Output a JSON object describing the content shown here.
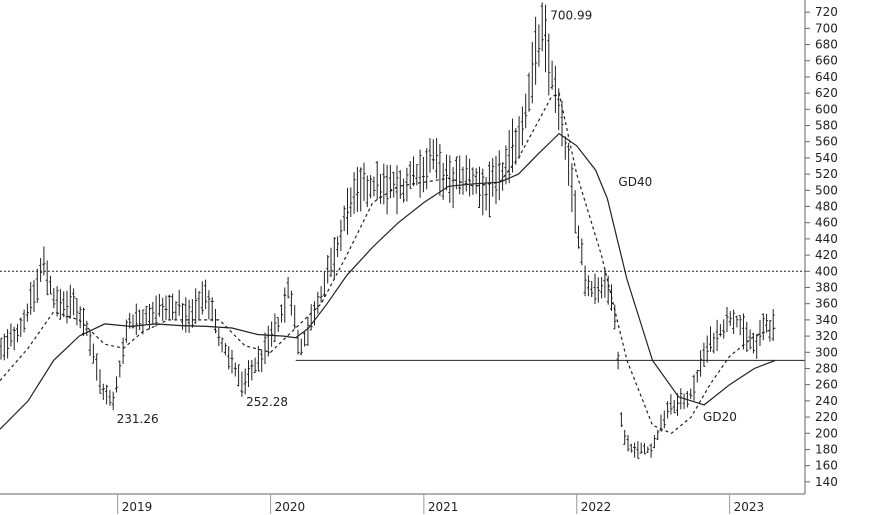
{
  "chart_data": {
    "type": "line",
    "subtype": "ohlc-bar",
    "y_axis_position": "right",
    "ylim": [
      125,
      735
    ],
    "y_ticks": [
      140,
      160,
      180,
      200,
      220,
      240,
      260,
      280,
      300,
      320,
      340,
      360,
      380,
      400,
      420,
      440,
      460,
      480,
      500,
      520,
      540,
      560,
      580,
      600,
      620,
      640,
      660,
      680,
      700,
      720
    ],
    "xlim": [
      "2018-03-26",
      "2023-06-30"
    ],
    "x_ticks": [
      {
        "date": "2019-01-01",
        "label": "2019"
      },
      {
        "date": "2020-01-01",
        "label": "2020"
      },
      {
        "date": "2021-01-01",
        "label": "2021"
      },
      {
        "date": "2022-01-01",
        "label": "2022"
      },
      {
        "date": "2023-01-01",
        "label": "2023"
      }
    ],
    "price_path": [
      [
        "2018-03-26",
        300
      ],
      [
        "2018-05-20",
        335
      ],
      [
        "2018-07-10",
        410
      ],
      [
        "2018-08-05",
        360
      ],
      [
        "2018-09-20",
        360
      ],
      [
        "2018-10-20",
        330
      ],
      [
        "2018-11-25",
        255
      ],
      [
        "2018-12-20",
        235
      ],
      [
        "2019-01-25",
        335
      ],
      [
        "2019-03-25",
        350
      ],
      [
        "2019-05-20",
        355
      ],
      [
        "2019-06-25",
        345
      ],
      [
        "2019-07-30",
        378
      ],
      [
        "2019-08-30",
        320
      ],
      [
        "2019-10-25",
        260
      ],
      [
        "2019-12-10",
        295
      ],
      [
        "2020-01-25",
        340
      ],
      [
        "2020-02-15",
        385
      ],
      [
        "2020-03-10",
        300
      ],
      [
        "2020-04-20",
        360
      ],
      [
        "2020-06-05",
        420
      ],
      [
        "2020-07-10",
        490
      ],
      [
        "2020-08-10",
        500
      ],
      [
        "2020-09-25",
        505
      ],
      [
        "2020-11-05",
        500
      ],
      [
        "2020-12-15",
        520
      ],
      [
        "2021-01-20",
        540
      ],
      [
        "2021-03-01",
        510
      ],
      [
        "2021-04-15",
        515
      ],
      [
        "2021-06-05",
        500
      ],
      [
        "2021-07-10",
        520
      ],
      [
        "2021-08-25",
        585
      ],
      [
        "2021-09-25",
        670
      ],
      [
        "2021-10-15",
        695
      ],
      [
        "2021-11-10",
        620
      ],
      [
        "2021-12-15",
        520
      ],
      [
        "2022-01-25",
        380
      ],
      [
        "2022-02-25",
        380
      ],
      [
        "2022-03-30",
        375
      ],
      [
        "2022-04-20",
        200
      ],
      [
        "2022-05-15",
        180
      ],
      [
        "2022-06-30",
        180
      ],
      [
        "2022-08-05",
        230
      ],
      [
        "2022-09-10",
        240
      ],
      [
        "2022-10-05",
        250
      ],
      [
        "2022-11-01",
        300
      ],
      [
        "2022-12-05",
        325
      ],
      [
        "2023-01-10",
        345
      ],
      [
        "2023-02-10",
        320
      ],
      [
        "2023-03-05",
        305
      ],
      [
        "2023-03-25",
        335
      ],
      [
        "2023-04-20",
        330
      ]
    ],
    "series": [
      {
        "name": "GD20",
        "style": "dashed",
        "color": "#222222",
        "points": [
          [
            "2018-03-26",
            265
          ],
          [
            "2018-06-01",
            305
          ],
          [
            "2018-08-01",
            350
          ],
          [
            "2018-10-01",
            340
          ],
          [
            "2018-12-01",
            310
          ],
          [
            "2019-01-15",
            305
          ],
          [
            "2019-03-01",
            325
          ],
          [
            "2019-05-01",
            340
          ],
          [
            "2019-07-01",
            340
          ],
          [
            "2019-09-01",
            340
          ],
          [
            "2019-11-01",
            308
          ],
          [
            "2020-01-01",
            300
          ],
          [
            "2020-03-01",
            330
          ],
          [
            "2020-05-01",
            360
          ],
          [
            "2020-07-01",
            420
          ],
          [
            "2020-09-01",
            485
          ],
          [
            "2020-11-01",
            505
          ],
          [
            "2021-01-01",
            510
          ],
          [
            "2021-03-01",
            515
          ],
          [
            "2021-05-01",
            505
          ],
          [
            "2021-07-01",
            510
          ],
          [
            "2021-08-15",
            540
          ],
          [
            "2021-10-01",
            585
          ],
          [
            "2021-11-01",
            615
          ],
          [
            "2021-11-20",
            620
          ],
          [
            "2022-01-01",
            520
          ],
          [
            "2022-03-01",
            420
          ],
          [
            "2022-05-01",
            290
          ],
          [
            "2022-07-01",
            210
          ],
          [
            "2022-08-15",
            200
          ],
          [
            "2022-10-01",
            220
          ],
          [
            "2022-11-15",
            260
          ],
          [
            "2023-01-01",
            295
          ],
          [
            "2023-03-01",
            320
          ],
          [
            "2023-04-20",
            330
          ]
        ]
      },
      {
        "name": "GD40",
        "style": "solid",
        "color": "#222222",
        "points": [
          [
            "2018-03-26",
            205
          ],
          [
            "2018-06-01",
            240
          ],
          [
            "2018-08-01",
            290
          ],
          [
            "2018-10-01",
            320
          ],
          [
            "2018-12-01",
            335
          ],
          [
            "2019-02-01",
            332
          ],
          [
            "2019-04-01",
            335
          ],
          [
            "2019-06-01",
            333
          ],
          [
            "2019-08-01",
            332
          ],
          [
            "2019-10-01",
            330
          ],
          [
            "2019-12-01",
            322
          ],
          [
            "2020-02-01",
            320
          ],
          [
            "2020-03-01",
            318
          ],
          [
            "2020-04-01",
            330
          ],
          [
            "2020-05-15",
            360
          ],
          [
            "2020-07-01",
            395
          ],
          [
            "2020-09-01",
            430
          ],
          [
            "2020-11-01",
            460
          ],
          [
            "2021-01-01",
            485
          ],
          [
            "2021-03-01",
            505
          ],
          [
            "2021-05-01",
            508
          ],
          [
            "2021-07-01",
            510
          ],
          [
            "2021-08-15",
            520
          ],
          [
            "2021-10-01",
            545
          ],
          [
            "2021-11-20",
            570
          ],
          [
            "2022-01-01",
            555
          ],
          [
            "2022-02-15",
            525
          ],
          [
            "2022-03-15",
            490
          ],
          [
            "2022-05-01",
            390
          ],
          [
            "2022-07-01",
            290
          ],
          [
            "2022-09-01",
            245
          ],
          [
            "2022-11-01",
            235
          ],
          [
            "2023-01-01",
            260
          ],
          [
            "2023-03-01",
            280
          ],
          [
            "2023-04-20",
            290
          ]
        ]
      }
    ],
    "reference_lines": [
      {
        "style": "dotted",
        "y": 400,
        "x_from": "2018-03-26",
        "x_to": "2023-06-30"
      },
      {
        "style": "solid",
        "y": 290,
        "x_from": "2020-03-01",
        "x_to": "2023-06-30"
      }
    ],
    "annotations": [
      {
        "text": "700.99",
        "x": "2021-10-25",
        "y": 701,
        "anchor": "above-right"
      },
      {
        "text": "231.26",
        "x": "2018-12-20",
        "y": 231,
        "anchor": "below-right"
      },
      {
        "text": "252.28",
        "x": "2019-10-25",
        "y": 252,
        "anchor": "below-right"
      },
      {
        "text": "GD40",
        "x": "2022-04-01",
        "y": 510,
        "anchor": "right"
      },
      {
        "text": "GD20",
        "x": "2022-10-20",
        "y": 220,
        "anchor": "right"
      }
    ]
  },
  "colors": {
    "background": "#ffffff",
    "ink": "#222222",
    "axis": "#666666"
  }
}
